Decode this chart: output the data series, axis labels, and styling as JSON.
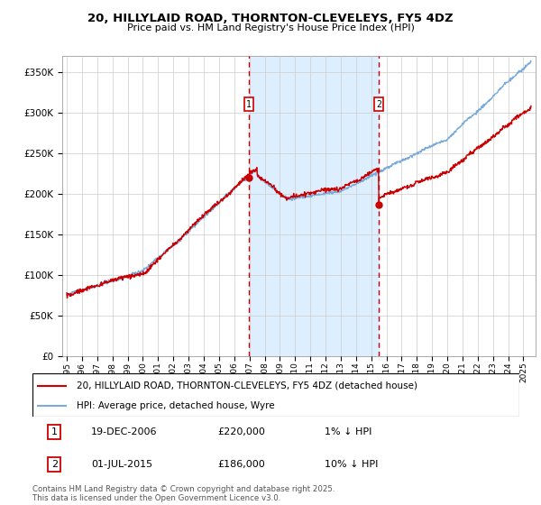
{
  "title": "20, HILLYLAID ROAD, THORNTON-CLEVELEYS, FY5 4DZ",
  "subtitle": "Price paid vs. HM Land Registry's House Price Index (HPI)",
  "ylim": [
    0,
    370000
  ],
  "yticks": [
    0,
    50000,
    100000,
    150000,
    200000,
    250000,
    300000,
    350000
  ],
  "ytick_labels": [
    "£0",
    "£50K",
    "£100K",
    "£150K",
    "£200K",
    "£250K",
    "£300K",
    "£350K"
  ],
  "line1_color": "#cc0000",
  "line2_color": "#7aabda",
  "shade_color": "#ddeeff",
  "vline_color": "#cc0000",
  "annotation1_label": "1",
  "annotation2_label": "2",
  "vline1_x": 2006.97,
  "vline2_x": 2015.5,
  "dot1_y": 220000,
  "dot2_y": 186000,
  "legend_line1": "20, HILLYLAID ROAD, THORNTON-CLEVELEYS, FY5 4DZ (detached house)",
  "legend_line2": "HPI: Average price, detached house, Wyre",
  "table_row1": [
    "1",
    "19-DEC-2006",
    "£220,000",
    "1% ↓ HPI"
  ],
  "table_row2": [
    "2",
    "01-JUL-2015",
    "£186,000",
    "10% ↓ HPI"
  ],
  "footnote": "Contains HM Land Registry data © Crown copyright and database right 2025.\nThis data is licensed under the Open Government Licence v3.0.",
  "xmin": 1994.7,
  "xmax": 2025.8
}
